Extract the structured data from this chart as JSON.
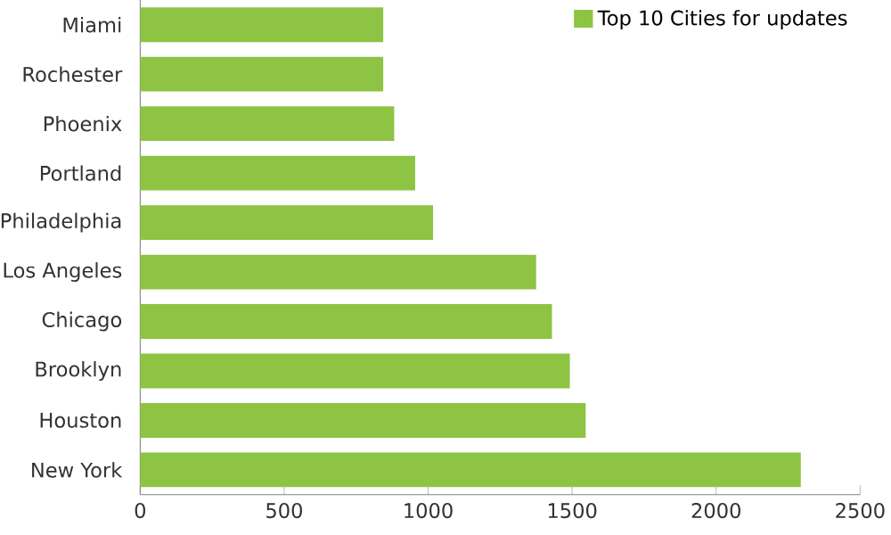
{
  "chart_data": {
    "type": "bar",
    "orientation": "horizontal",
    "categories": [
      "Miami",
      "Rochester",
      "Phoenix",
      "Portland",
      "Philadelphia",
      "Los Angeles",
      "Chicago",
      "Brooklyn",
      "Houston",
      "New York"
    ],
    "series": [
      {
        "name": "Top 10 Cities for updates",
        "color": "#8dc443",
        "values": [
          844,
          844,
          882,
          955,
          1017,
          1375,
          1430,
          1492,
          1547,
          2294
        ]
      }
    ],
    "xlim": [
      0,
      2500
    ],
    "xticks": [
      0,
      500,
      1000,
      1500,
      2000,
      2500
    ],
    "grid": false,
    "legend": "top right"
  }
}
